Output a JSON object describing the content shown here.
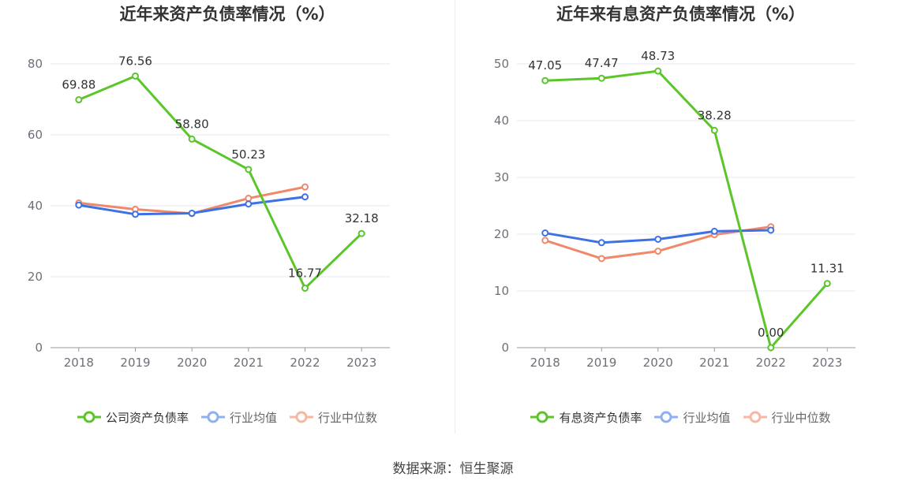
{
  "source_label": "数据来源：恒生聚源",
  "colors": {
    "company": "#5ac62a",
    "industry_avg": "#3d72e4",
    "industry_median": "#f0886a",
    "axis": "#999999",
    "grid": "#e6e9f2"
  },
  "chart_data": [
    {
      "type": "line",
      "title": "近年来资产负债率情况（%）",
      "categories": [
        "2018",
        "2019",
        "2020",
        "2021",
        "2022",
        "2023"
      ],
      "ylim": [
        0,
        80
      ],
      "yticks": [
        0,
        20,
        40,
        60,
        80
      ],
      "grid": true,
      "legend_position": "bottom",
      "series": [
        {
          "name": "公司资产负债率",
          "values": [
            69.88,
            76.56,
            58.8,
            50.23,
            16.77,
            32.18
          ],
          "labels": [
            "69.88",
            "76.56",
            "58.80",
            "50.23",
            "16.77",
            "32.18"
          ],
          "color": "#5ac62a"
        },
        {
          "name": "行业均值",
          "values": [
            40.2,
            37.6,
            37.9,
            40.5,
            42.5,
            null
          ],
          "color": "#3d72e4"
        },
        {
          "name": "行业中位数",
          "values": [
            40.8,
            39.0,
            37.8,
            42.1,
            45.3,
            null
          ],
          "color": "#f0886a"
        }
      ]
    },
    {
      "type": "line",
      "title": "近年来有息资产负债率情况（%）",
      "categories": [
        "2018",
        "2019",
        "2020",
        "2021",
        "2022",
        "2023"
      ],
      "ylim": [
        0,
        50
      ],
      "yticks": [
        0,
        10,
        20,
        30,
        40,
        50
      ],
      "grid": true,
      "legend_position": "bottom",
      "series": [
        {
          "name": "有息资产负债率",
          "values": [
            47.05,
            47.47,
            48.73,
            38.28,
            0.0,
            11.31
          ],
          "labels": [
            "47.05",
            "47.47",
            "48.73",
            "38.28",
            "0.00",
            "11.31"
          ],
          "color": "#5ac62a"
        },
        {
          "name": "行业均值",
          "values": [
            20.2,
            18.5,
            19.1,
            20.5,
            20.7,
            null
          ],
          "color": "#3d72e4"
        },
        {
          "name": "行业中位数",
          "values": [
            18.9,
            15.7,
            17.0,
            19.9,
            21.3,
            null
          ],
          "color": "#f0886a"
        }
      ]
    }
  ]
}
